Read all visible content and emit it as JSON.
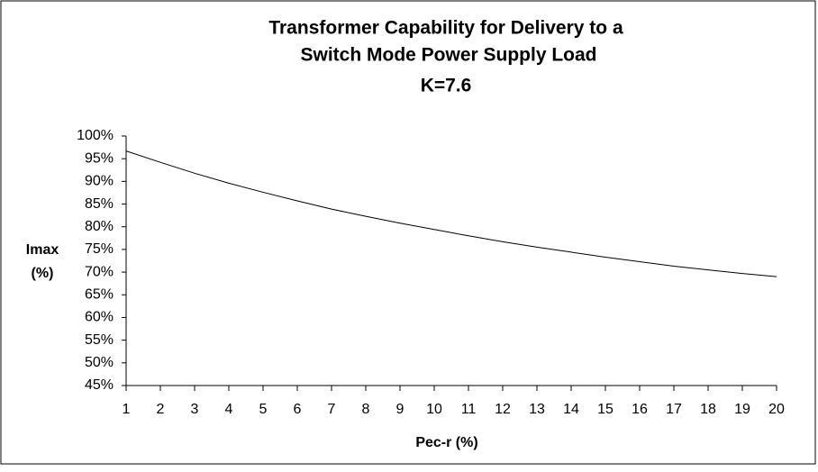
{
  "chart_data": {
    "type": "line",
    "title": [
      "Transformer Capability for Delivery to a",
      "Switch Mode Power Supply Load",
      "K=7.6"
    ],
    "xlabel": "Pec-r (%)",
    "ylabel": [
      "Imax",
      "(%)"
    ],
    "x": [
      1,
      2,
      3,
      4,
      5,
      6,
      7,
      8,
      9,
      10,
      11,
      12,
      13,
      14,
      15,
      16,
      17,
      18,
      19,
      20
    ],
    "series": [
      {
        "color": "#000000",
        "values": [
          96.7,
          94.2,
          91.8,
          89.6,
          87.6,
          85.7,
          83.9,
          82.3,
          80.8,
          79.4,
          78.0,
          76.7,
          75.5,
          74.4,
          73.3,
          72.3,
          71.3,
          70.5,
          69.7,
          69.0
        ]
      }
    ],
    "xlim": [
      1,
      20
    ],
    "xticks": [
      1,
      2,
      3,
      4,
      5,
      6,
      7,
      8,
      9,
      10,
      11,
      12,
      13,
      14,
      15,
      16,
      17,
      18,
      19,
      20
    ],
    "ylim": [
      45,
      100
    ],
    "yticks": [
      {
        "value": 45,
        "label": "45%"
      },
      {
        "value": 50,
        "label": "50%"
      },
      {
        "value": 55,
        "label": "55%"
      },
      {
        "value": 60,
        "label": "60%"
      },
      {
        "value": 65,
        "label": "65%"
      },
      {
        "value": 70,
        "label": "70%"
      },
      {
        "value": 75,
        "label": "75%"
      },
      {
        "value": 80,
        "label": "80%"
      },
      {
        "value": 85,
        "label": "85%"
      },
      {
        "value": 90,
        "label": "90%"
      },
      {
        "value": 95,
        "label": "95%"
      },
      {
        "value": 100,
        "label": "100%"
      }
    ],
    "grid": false
  }
}
